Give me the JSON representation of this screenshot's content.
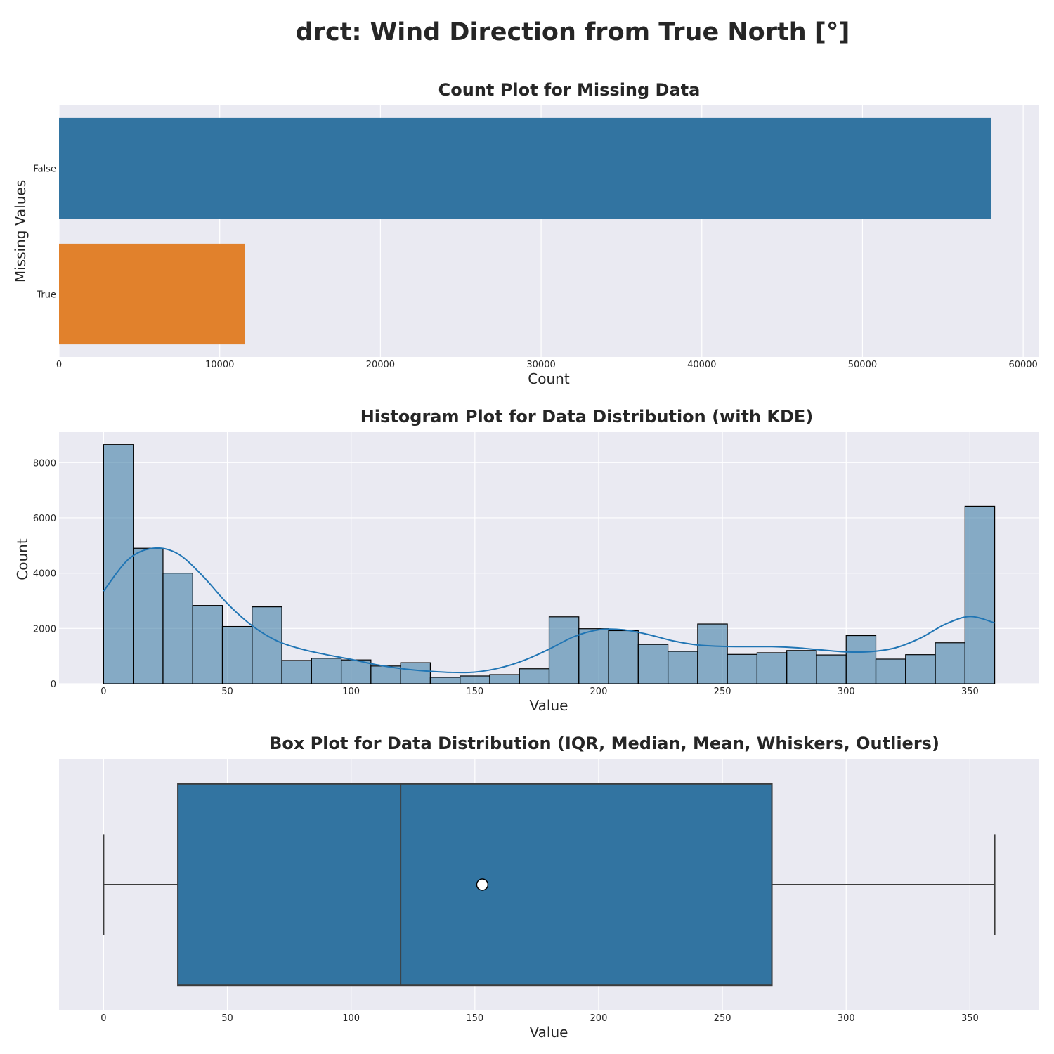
{
  "figure_title": "drct: Wind Direction from True North [°]",
  "chart_data": [
    {
      "type": "bar",
      "orientation": "horizontal",
      "title": "Count Plot for Missing Data",
      "xlabel": "Count",
      "ylabel": "Missing Values",
      "categories": [
        "False",
        "True"
      ],
      "values": [
        58000,
        11550
      ],
      "colors": [
        "#3274a1",
        "#e1812c"
      ],
      "xlim": [
        0,
        61000
      ],
      "xticks": [
        0,
        10000,
        20000,
        30000,
        40000,
        50000,
        60000
      ],
      "grid": true
    },
    {
      "type": "histogram",
      "title": "Histogram Plot for Data Distribution (with KDE)",
      "xlabel": "Value",
      "ylabel": "Count",
      "bin_start": 0,
      "bin_width": 12,
      "counts": [
        8650,
        4900,
        4000,
        2830,
        2070,
        2780,
        840,
        920,
        860,
        640,
        760,
        230,
        280,
        330,
        540,
        2420,
        1990,
        1920,
        1420,
        1170,
        2160,
        1060,
        1120,
        1200,
        1040,
        1740,
        890,
        1050,
        1480,
        6420
      ],
      "bar_color": "#3274a1",
      "kde_color": "#2075b4",
      "kde": {
        "x": [
          0,
          10,
          20,
          30,
          40,
          50,
          60,
          70,
          80,
          90,
          100,
          110,
          120,
          130,
          140,
          150,
          160,
          170,
          180,
          190,
          200,
          210,
          220,
          230,
          240,
          250,
          260,
          270,
          280,
          290,
          300,
          310,
          320,
          330,
          340,
          350,
          360
        ],
        "y": [
          3350,
          4500,
          4900,
          4700,
          3900,
          2900,
          2100,
          1550,
          1250,
          1050,
          880,
          690,
          550,
          460,
          410,
          420,
          570,
          850,
          1250,
          1700,
          1950,
          1950,
          1780,
          1550,
          1400,
          1350,
          1340,
          1340,
          1300,
          1220,
          1150,
          1160,
          1300,
          1650,
          2150,
          2430,
          2200
        ]
      },
      "xlim": [
        -18,
        378
      ],
      "ylim": [
        0,
        9100
      ],
      "xticks": [
        0,
        50,
        100,
        150,
        200,
        250,
        300,
        350
      ],
      "yticks": [
        0,
        2000,
        4000,
        6000,
        8000
      ],
      "grid": true
    },
    {
      "type": "box",
      "orientation": "horizontal",
      "title": "Box Plot for Data Distribution (IQR, Median, Mean, Whiskers, Outliers)",
      "xlabel": "Value",
      "whisker_low": 0,
      "q1": 30,
      "median": 120,
      "mean": 153,
      "q3": 270,
      "whisker_high": 360,
      "color": "#3274a1",
      "xlim": [
        -18,
        378
      ],
      "xticks": [
        0,
        50,
        100,
        150,
        200,
        250,
        300,
        350
      ],
      "grid": true
    }
  ]
}
